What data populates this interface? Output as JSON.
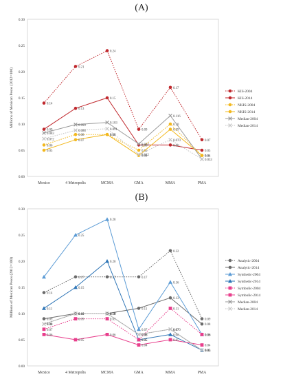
{
  "chart_data": [
    {
      "panel_label": "(A)",
      "type": "line",
      "ylabel": "Millions of Mexican Pesos (2012=100)",
      "categories": [
        "Mexico",
        "4 Metropolis",
        "MCMA",
        "GMA",
        "MMA",
        "PMA"
      ],
      "ylim": [
        0,
        0.3
      ],
      "yticks": [
        "0.00",
        "0.05",
        "0.10",
        "0.15",
        "0.20",
        "0.25",
        "0.30"
      ],
      "grid": false,
      "legend_position": "right",
      "series": [
        {
          "name": "KIS-2004",
          "color": "#c0282d",
          "dash": "dotted",
          "marker": "circle",
          "values": [
            0.14,
            0.21,
            0.24,
            0.09,
            0.17,
            0.07
          ],
          "labels": [
            "0.14",
            "0.21",
            "0.24",
            "0.09",
            "0.17",
            "0.07"
          ]
        },
        {
          "name": "KIS-2014",
          "color": "#c0282d",
          "dash": "solid",
          "marker": "circle",
          "values": [
            0.09,
            0.13,
            0.15,
            0.06,
            0.06,
            0.05
          ],
          "labels": [
            "0.09",
            "0.13",
            "0.15",
            "0.06",
            "0.06",
            "0.05"
          ]
        },
        {
          "name": "NKIS-2004",
          "color": "#f2b81e",
          "dash": "dotted",
          "marker": "circle",
          "values": [
            0.06,
            0.08,
            0.08,
            0.05,
            0.1,
            0.04
          ],
          "labels": [
            "0.06",
            "0.08",
            "0.08",
            "0.05",
            "0.10",
            "0.04"
          ]
        },
        {
          "name": "NKIS-2014",
          "color": "#f2b81e",
          "dash": "solid",
          "marker": "circle",
          "values": [
            0.05,
            0.07,
            0.08,
            0.04,
            0.09,
            0.04
          ],
          "labels": [
            "0.05",
            "0.07",
            "0.08",
            "0.04",
            "0.09",
            "0.04"
          ]
        },
        {
          "name": "Median-2004",
          "color": "#9a9a9a",
          "dash": "solid",
          "marker": "x",
          "values": [
            0.083,
            0.099,
            0.103,
            0.062,
            0.116,
            0.033
          ],
          "labels": [
            "0.083",
            "0.099",
            "0.103",
            "0.062",
            "0.116",
            "0.033"
          ]
        },
        {
          "name": "Median-2014",
          "color": "#c4c4c4",
          "dash": "dotted",
          "marker": "x",
          "values": [
            0.072,
            0.088,
            0.091,
            0.042,
            0.07,
            0.033
          ],
          "labels": [
            "0.072",
            "0.088",
            "0.091",
            "0.042",
            "0.070",
            ""
          ]
        }
      ]
    },
    {
      "panel_label": "(B)",
      "type": "line",
      "ylabel": "Millions of Mexican Pesos (2012=100)",
      "categories": [
        "Mexico",
        "4 Metropolis",
        "MCMA",
        "GMA",
        "MMA",
        "PMA"
      ],
      "ylim": [
        0,
        0.3
      ],
      "yticks": [
        "0.00",
        "0.05",
        "0.10",
        "0.15",
        "0.20",
        "0.25",
        "0.30"
      ],
      "grid": false,
      "legend_position": "right",
      "series": [
        {
          "name": "Analytic-2004",
          "color": "#6b6b6b",
          "dash": "dotted",
          "marker": "circle",
          "values": [
            0.14,
            0.17,
            0.17,
            0.17,
            0.22,
            0.09
          ],
          "labels": [
            "0.14",
            "0.17",
            "0.17",
            "0.17",
            "0.22",
            "0.09"
          ]
        },
        {
          "name": "Analytic-2014",
          "color": "#6b6b6b",
          "dash": "solid",
          "marker": "circle",
          "values": [
            0.09,
            0.1,
            0.1,
            0.11,
            0.13,
            0.08
          ],
          "labels": [
            "0.09",
            "0.10",
            "0.10",
            "0.11",
            "0.13",
            "0.08"
          ]
        },
        {
          "name": "Synthetic-2004",
          "color": "#5b9bd5",
          "dash": "solid",
          "marker": "triangle",
          "values": [
            0.17,
            0.25,
            0.28,
            0.07,
            0.16,
            0.06
          ],
          "labels": [
            "",
            "0.25",
            "0.28",
            "0.07",
            "0.16",
            "0.06"
          ]
        },
        {
          "name": "Synthetic-2014",
          "color": "#2e75b6",
          "dash": "solid",
          "marker": "triangle",
          "values": [
            0.11,
            0.15,
            0.2,
            0.05,
            0.06,
            0.03
          ],
          "labels": [
            "0.11",
            "0.15",
            "0.20",
            "0.05",
            "0.06",
            "0.03"
          ]
        },
        {
          "name": "Symbolic-2004",
          "color": "#e83e8c",
          "dash": "dotted",
          "marker": "square",
          "values": [
            0.07,
            0.09,
            0.09,
            0.05,
            0.11,
            0.06
          ],
          "labels": [
            "0.07",
            "0.09",
            "0.09",
            "0.05",
            "0.11",
            "0.06"
          ]
        },
        {
          "name": "Symbolic-2014",
          "color": "#e83e8c",
          "dash": "solid",
          "marker": "square",
          "values": [
            0.06,
            0.05,
            0.06,
            0.04,
            0.05,
            0.04
          ],
          "labels": [
            "0.06",
            "0.05",
            "0.06",
            "0.04",
            "0.05",
            "0.04"
          ]
        },
        {
          "name": "Median-2004",
          "color": "#9a9a9a",
          "dash": "solid",
          "marker": "x",
          "values": [
            0.08,
            0.1,
            0.1,
            0.06,
            0.07,
            0.03
          ],
          "labels": [
            "0.08",
            "0.10",
            "0.10",
            "0.06",
            "0.070",
            "0.03"
          ]
        },
        {
          "name": "Median-2014",
          "color": "#c4c4c4",
          "dash": "dotted",
          "marker": "x",
          "values": [
            0.08,
            0.1,
            0.1,
            0.06,
            0.07,
            0.03
          ],
          "labels": [
            "0.08",
            "0.10",
            "0.10",
            "0.06",
            "0.07",
            "0.03"
          ]
        }
      ]
    }
  ]
}
